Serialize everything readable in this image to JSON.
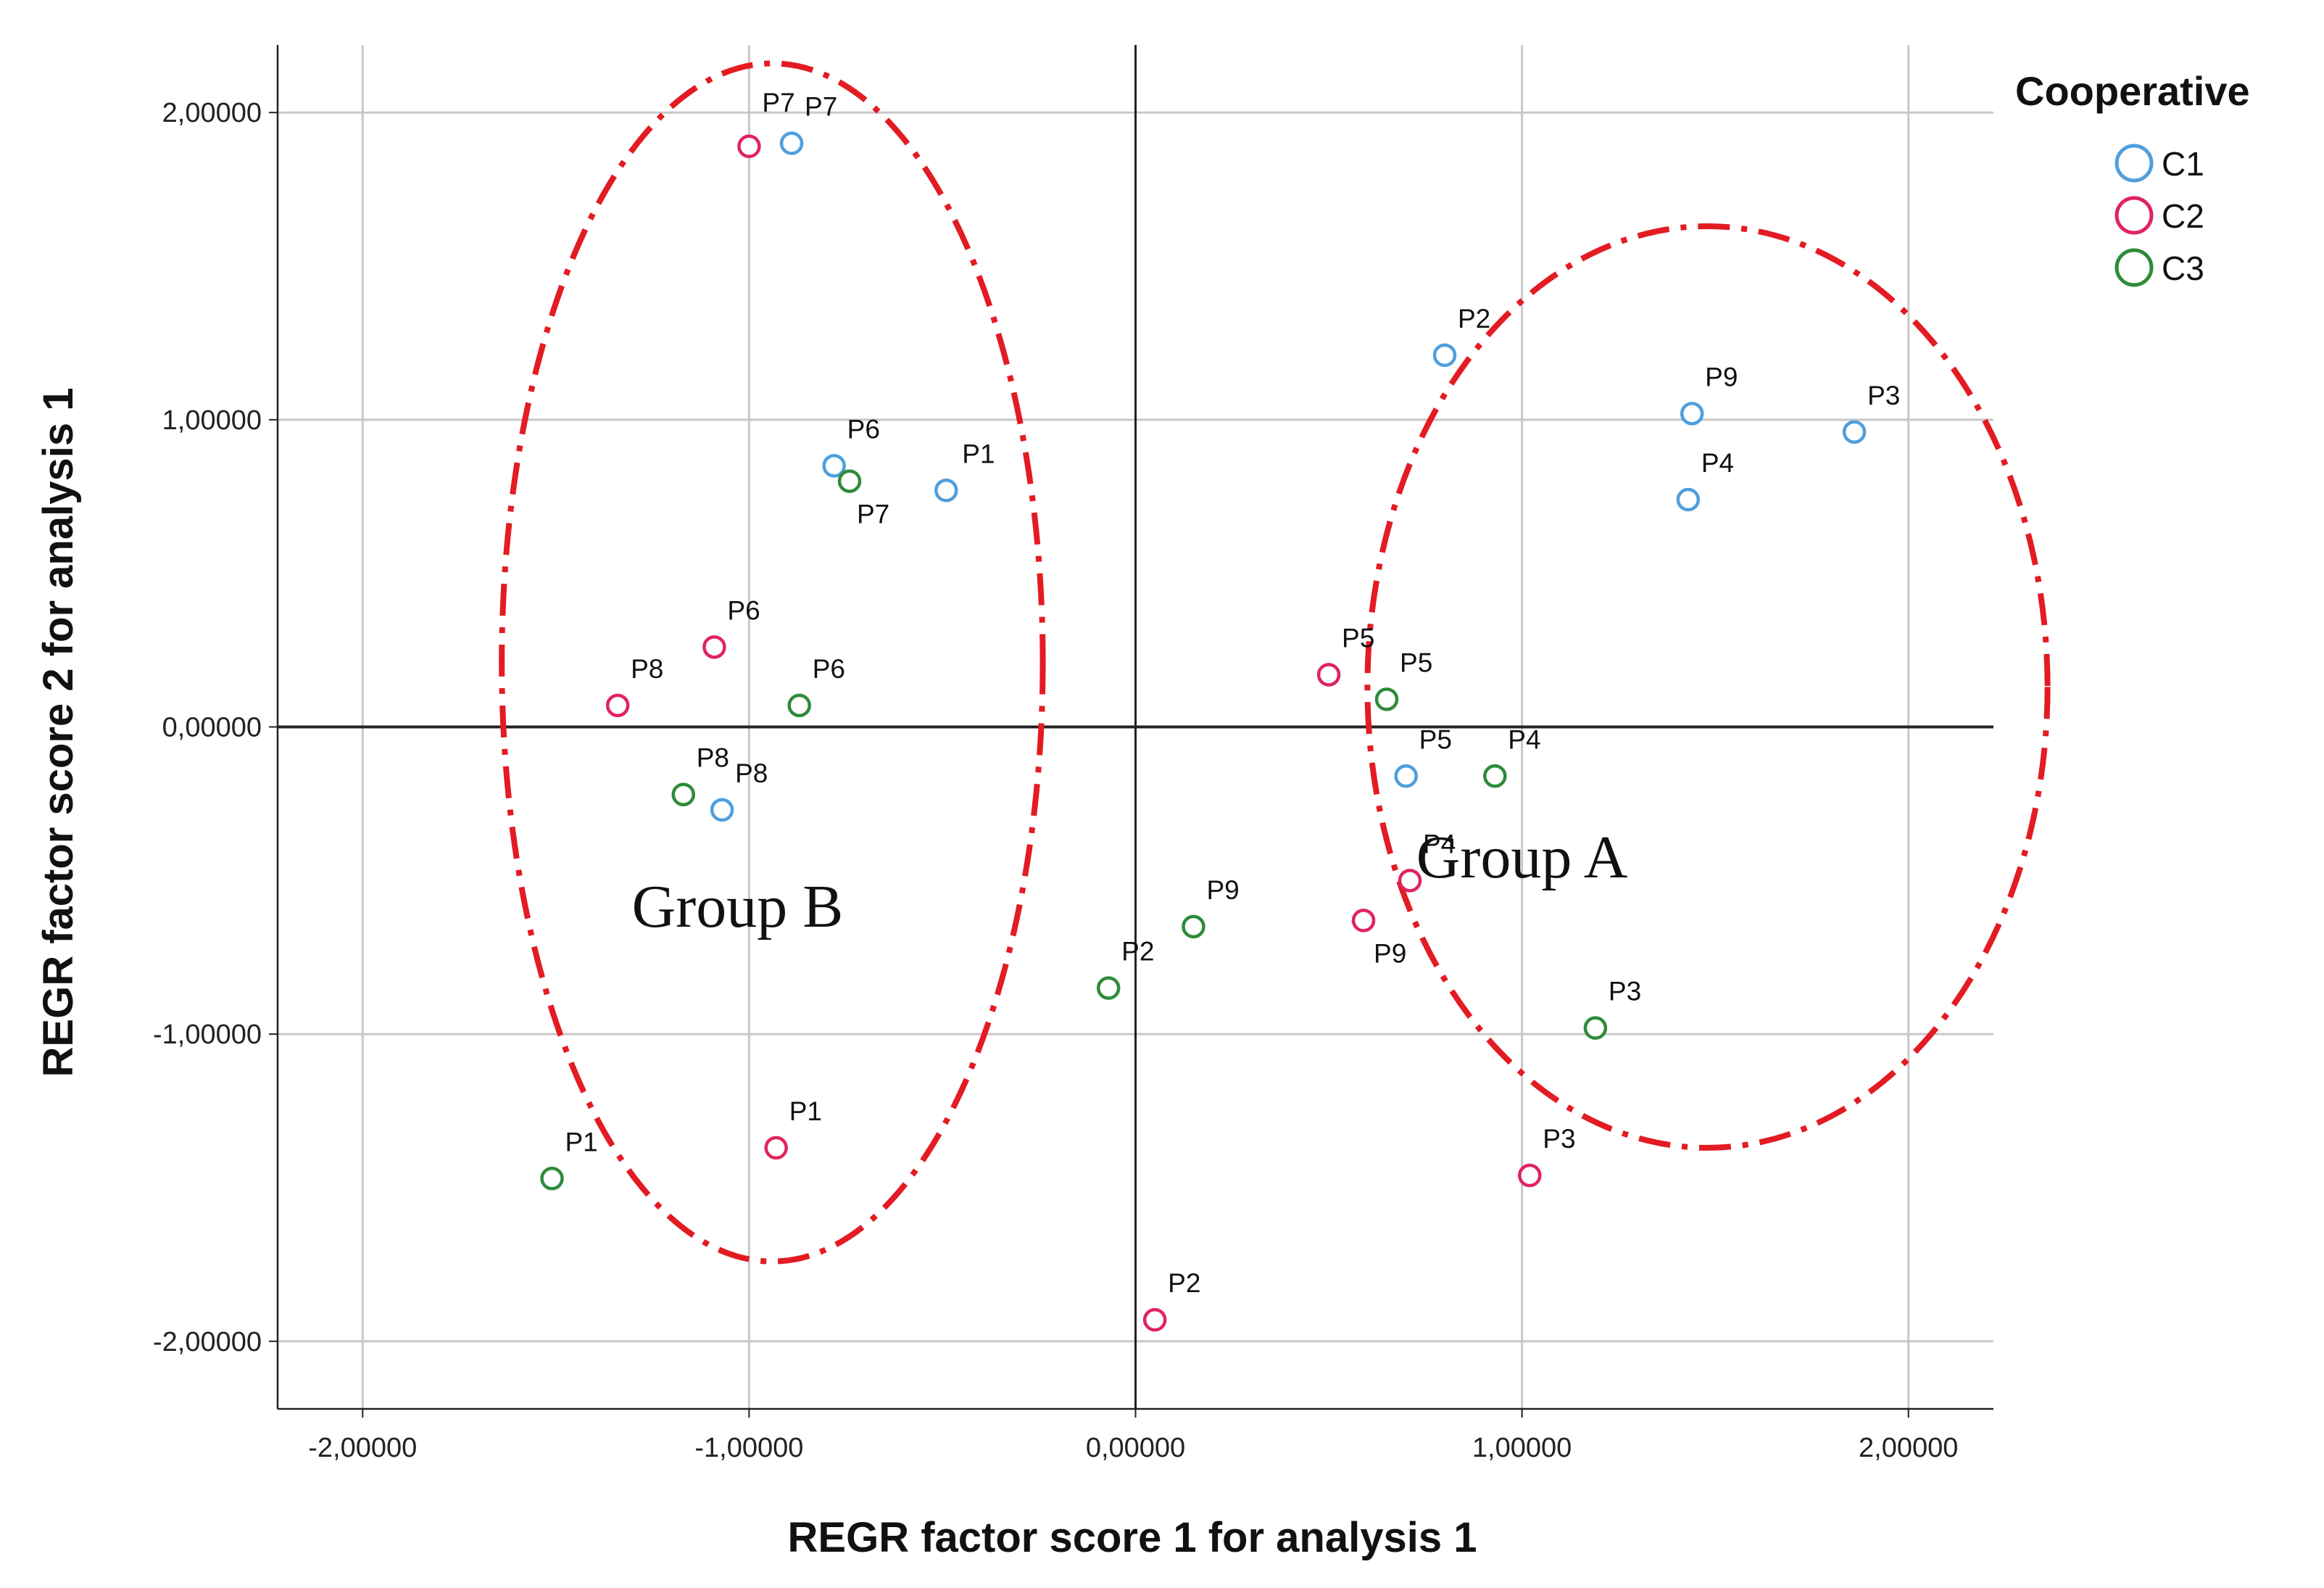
{
  "chart_data": {
    "type": "scatter",
    "xlabel": "REGR factor score   1 for analysis 1",
    "ylabel": "REGR factor score   2 for analysis 1",
    "xlim": [
      -2.22,
      2.22
    ],
    "ylim": [
      -2.22,
      2.22
    ],
    "x_ticks": [
      -2,
      -1,
      0,
      1,
      2
    ],
    "y_ticks": [
      -2,
      -1,
      0,
      1,
      2
    ],
    "x_tick_labels": [
      "-2,00000",
      "-1,00000",
      "0,00000",
      "1,00000",
      "2,00000"
    ],
    "y_tick_labels": [
      "-2,00000",
      "-1,00000",
      "0,00000",
      "1,00000",
      "2,00000"
    ],
    "grid": true,
    "legend_position": "top-right",
    "legend": {
      "title": "Cooperative",
      "entries": [
        {
          "name": "C1",
          "color": "#4f9fde"
        },
        {
          "name": "C2",
          "color": "#e0245e"
        },
        {
          "name": "C3",
          "color": "#2e8b3a"
        }
      ]
    },
    "series": [
      {
        "name": "C1",
        "color": "#4f9fde",
        "points": [
          {
            "label": "P7",
            "x": -0.89,
            "y": 1.9
          },
          {
            "label": "P6",
            "x": -0.78,
            "y": 0.85
          },
          {
            "label": "P1",
            "x": -0.49,
            "y": 0.77
          },
          {
            "label": "P8",
            "x": -1.07,
            "y": -0.27
          },
          {
            "label": "P2",
            "x": 0.8,
            "y": 1.21
          },
          {
            "label": "P9",
            "x": 1.44,
            "y": 1.02
          },
          {
            "label": "P3",
            "x": 1.86,
            "y": 0.96
          },
          {
            "label": "P4",
            "x": 1.43,
            "y": 0.74
          },
          {
            "label": "P5",
            "x": 0.7,
            "y": -0.16
          }
        ]
      },
      {
        "name": "C2",
        "color": "#e0245e",
        "points": [
          {
            "label": "P7",
            "x": -1.0,
            "y": 1.89
          },
          {
            "label": "P6",
            "x": -1.09,
            "y": 0.26
          },
          {
            "label": "P8",
            "x": -1.34,
            "y": 0.07
          },
          {
            "label": "P1",
            "x": -0.93,
            "y": -1.37
          },
          {
            "label": "P2",
            "x": 0.05,
            "y": -1.93
          },
          {
            "label": "P5",
            "x": 0.5,
            "y": 0.17
          },
          {
            "label": "P4",
            "x": 0.71,
            "y": -0.5
          },
          {
            "label": "P9",
            "x": 0.59,
            "y": -0.63
          },
          {
            "label": "P3",
            "x": 1.02,
            "y": -1.46
          }
        ]
      },
      {
        "name": "C3",
        "color": "#2e8b3a",
        "points": [
          {
            "label": "P7",
            "x": -0.74,
            "y": 0.8
          },
          {
            "label": "P6",
            "x": -0.87,
            "y": 0.07
          },
          {
            "label": "P8",
            "x": -1.17,
            "y": -0.22
          },
          {
            "label": "P1",
            "x": -1.51,
            "y": -1.47
          },
          {
            "label": "P9",
            "x": 0.15,
            "y": -0.65
          },
          {
            "label": "P2",
            "x": -0.07,
            "y": -0.85
          },
          {
            "label": "P5",
            "x": 0.65,
            "y": 0.09
          },
          {
            "label": "P4",
            "x": 0.93,
            "y": -0.16
          },
          {
            "label": "P3",
            "x": 1.19,
            "y": -0.98
          }
        ]
      }
    ],
    "annotations": [
      {
        "text": "Group A",
        "cx": 1.48,
        "cy": 0.13,
        "rx": 0.88,
        "ry": 1.5,
        "color": "#e31b23"
      },
      {
        "text": "Group B",
        "cx": -0.94,
        "cy": 0.21,
        "rx": 0.7,
        "ry": 1.95,
        "color": "#e31b23"
      }
    ]
  }
}
